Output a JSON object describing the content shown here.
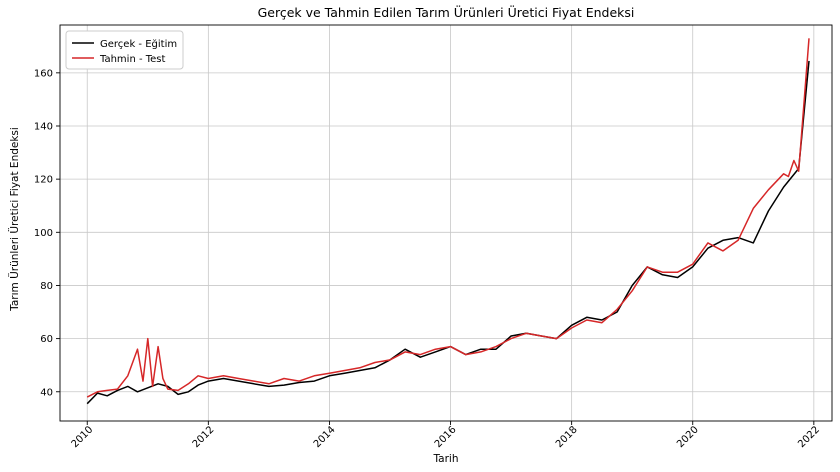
{
  "chart_data": {
    "type": "line",
    "title": "Gerçek ve Tahmin Edilen Tarım Ürünleri Üretici Fiyat Endeksi",
    "xlabel": "Tarih",
    "ylabel": "Tarım Ürünleri Üretici Fiyat Endeksi",
    "x_ticks": [
      "2010",
      "2012",
      "2014",
      "2016",
      "2018",
      "2020",
      "2022"
    ],
    "x_tick_values": [
      2010,
      2012,
      2014,
      2016,
      2018,
      2020,
      2022
    ],
    "y_ticks": [
      "40",
      "60",
      "80",
      "100",
      "120",
      "140",
      "160"
    ],
    "y_tick_values": [
      40,
      60,
      80,
      100,
      120,
      140,
      160
    ],
    "xlim": [
      2009.55,
      2022.3
    ],
    "ylim": [
      29,
      178
    ],
    "grid": true,
    "legend_position": "top-left",
    "series": [
      {
        "name": "Gerçek - Eğitim",
        "color": "#000000",
        "x": [
          2010.0,
          2010.17,
          2010.33,
          2010.5,
          2010.67,
          2010.83,
          2011.0,
          2011.17,
          2011.33,
          2011.5,
          2011.67,
          2011.83,
          2012.0,
          2012.25,
          2012.5,
          2012.75,
          2013.0,
          2013.25,
          2013.5,
          2013.75,
          2014.0,
          2014.25,
          2014.5,
          2014.75,
          2015.0,
          2015.25,
          2015.5,
          2015.75,
          2016.0,
          2016.25,
          2016.5,
          2016.75,
          2017.0,
          2017.25,
          2017.5,
          2017.75,
          2018.0,
          2018.25,
          2018.5,
          2018.75,
          2019.0,
          2019.25,
          2019.5,
          2019.75,
          2020.0,
          2020.25,
          2020.5,
          2020.75,
          2021.0,
          2021.25,
          2021.5,
          2021.75,
          2021.92
        ],
        "y": [
          35.5,
          39.5,
          38.5,
          40.5,
          42,
          40,
          41.5,
          43,
          42,
          39,
          40,
          42.5,
          44,
          45,
          44,
          43,
          42,
          42.5,
          43.5,
          44,
          46,
          47,
          48,
          49,
          52,
          56,
          53,
          55,
          57,
          54,
          56,
          56,
          61,
          62,
          61,
          60,
          65,
          68,
          67,
          70,
          80,
          87,
          84,
          83,
          87,
          94,
          97,
          98,
          96,
          108,
          117,
          124,
          164.5
        ]
      },
      {
        "name": "Tahmin - Test",
        "color": "#d62728",
        "x": [
          2010.0,
          2010.17,
          2010.33,
          2010.5,
          2010.67,
          2010.83,
          2010.92,
          2011.0,
          2011.08,
          2011.17,
          2011.25,
          2011.33,
          2011.5,
          2011.67,
          2011.83,
          2012.0,
          2012.25,
          2012.5,
          2012.75,
          2013.0,
          2013.25,
          2013.5,
          2013.75,
          2014.0,
          2014.25,
          2014.5,
          2014.75,
          2015.0,
          2015.25,
          2015.5,
          2015.75,
          2016.0,
          2016.25,
          2016.5,
          2016.75,
          2017.0,
          2017.25,
          2017.5,
          2017.75,
          2018.0,
          2018.25,
          2018.5,
          2018.75,
          2019.0,
          2019.25,
          2019.5,
          2019.75,
          2020.0,
          2020.25,
          2020.5,
          2020.75,
          2021.0,
          2021.25,
          2021.5,
          2021.58,
          2021.67,
          2021.75,
          2021.92
        ],
        "y": [
          38,
          40,
          40.5,
          41,
          46,
          56,
          44,
          60,
          42,
          57,
          45,
          41,
          40.5,
          43,
          46,
          45,
          46,
          45,
          44,
          43,
          45,
          44,
          46,
          47,
          48,
          49,
          51,
          52,
          55,
          54,
          56,
          57,
          54,
          55,
          57,
          60,
          62,
          61,
          60,
          64,
          67,
          66,
          71,
          78,
          87,
          85,
          85,
          88,
          96,
          93,
          97,
          109,
          116,
          122,
          121,
          127,
          123,
          173
        ]
      }
    ]
  }
}
